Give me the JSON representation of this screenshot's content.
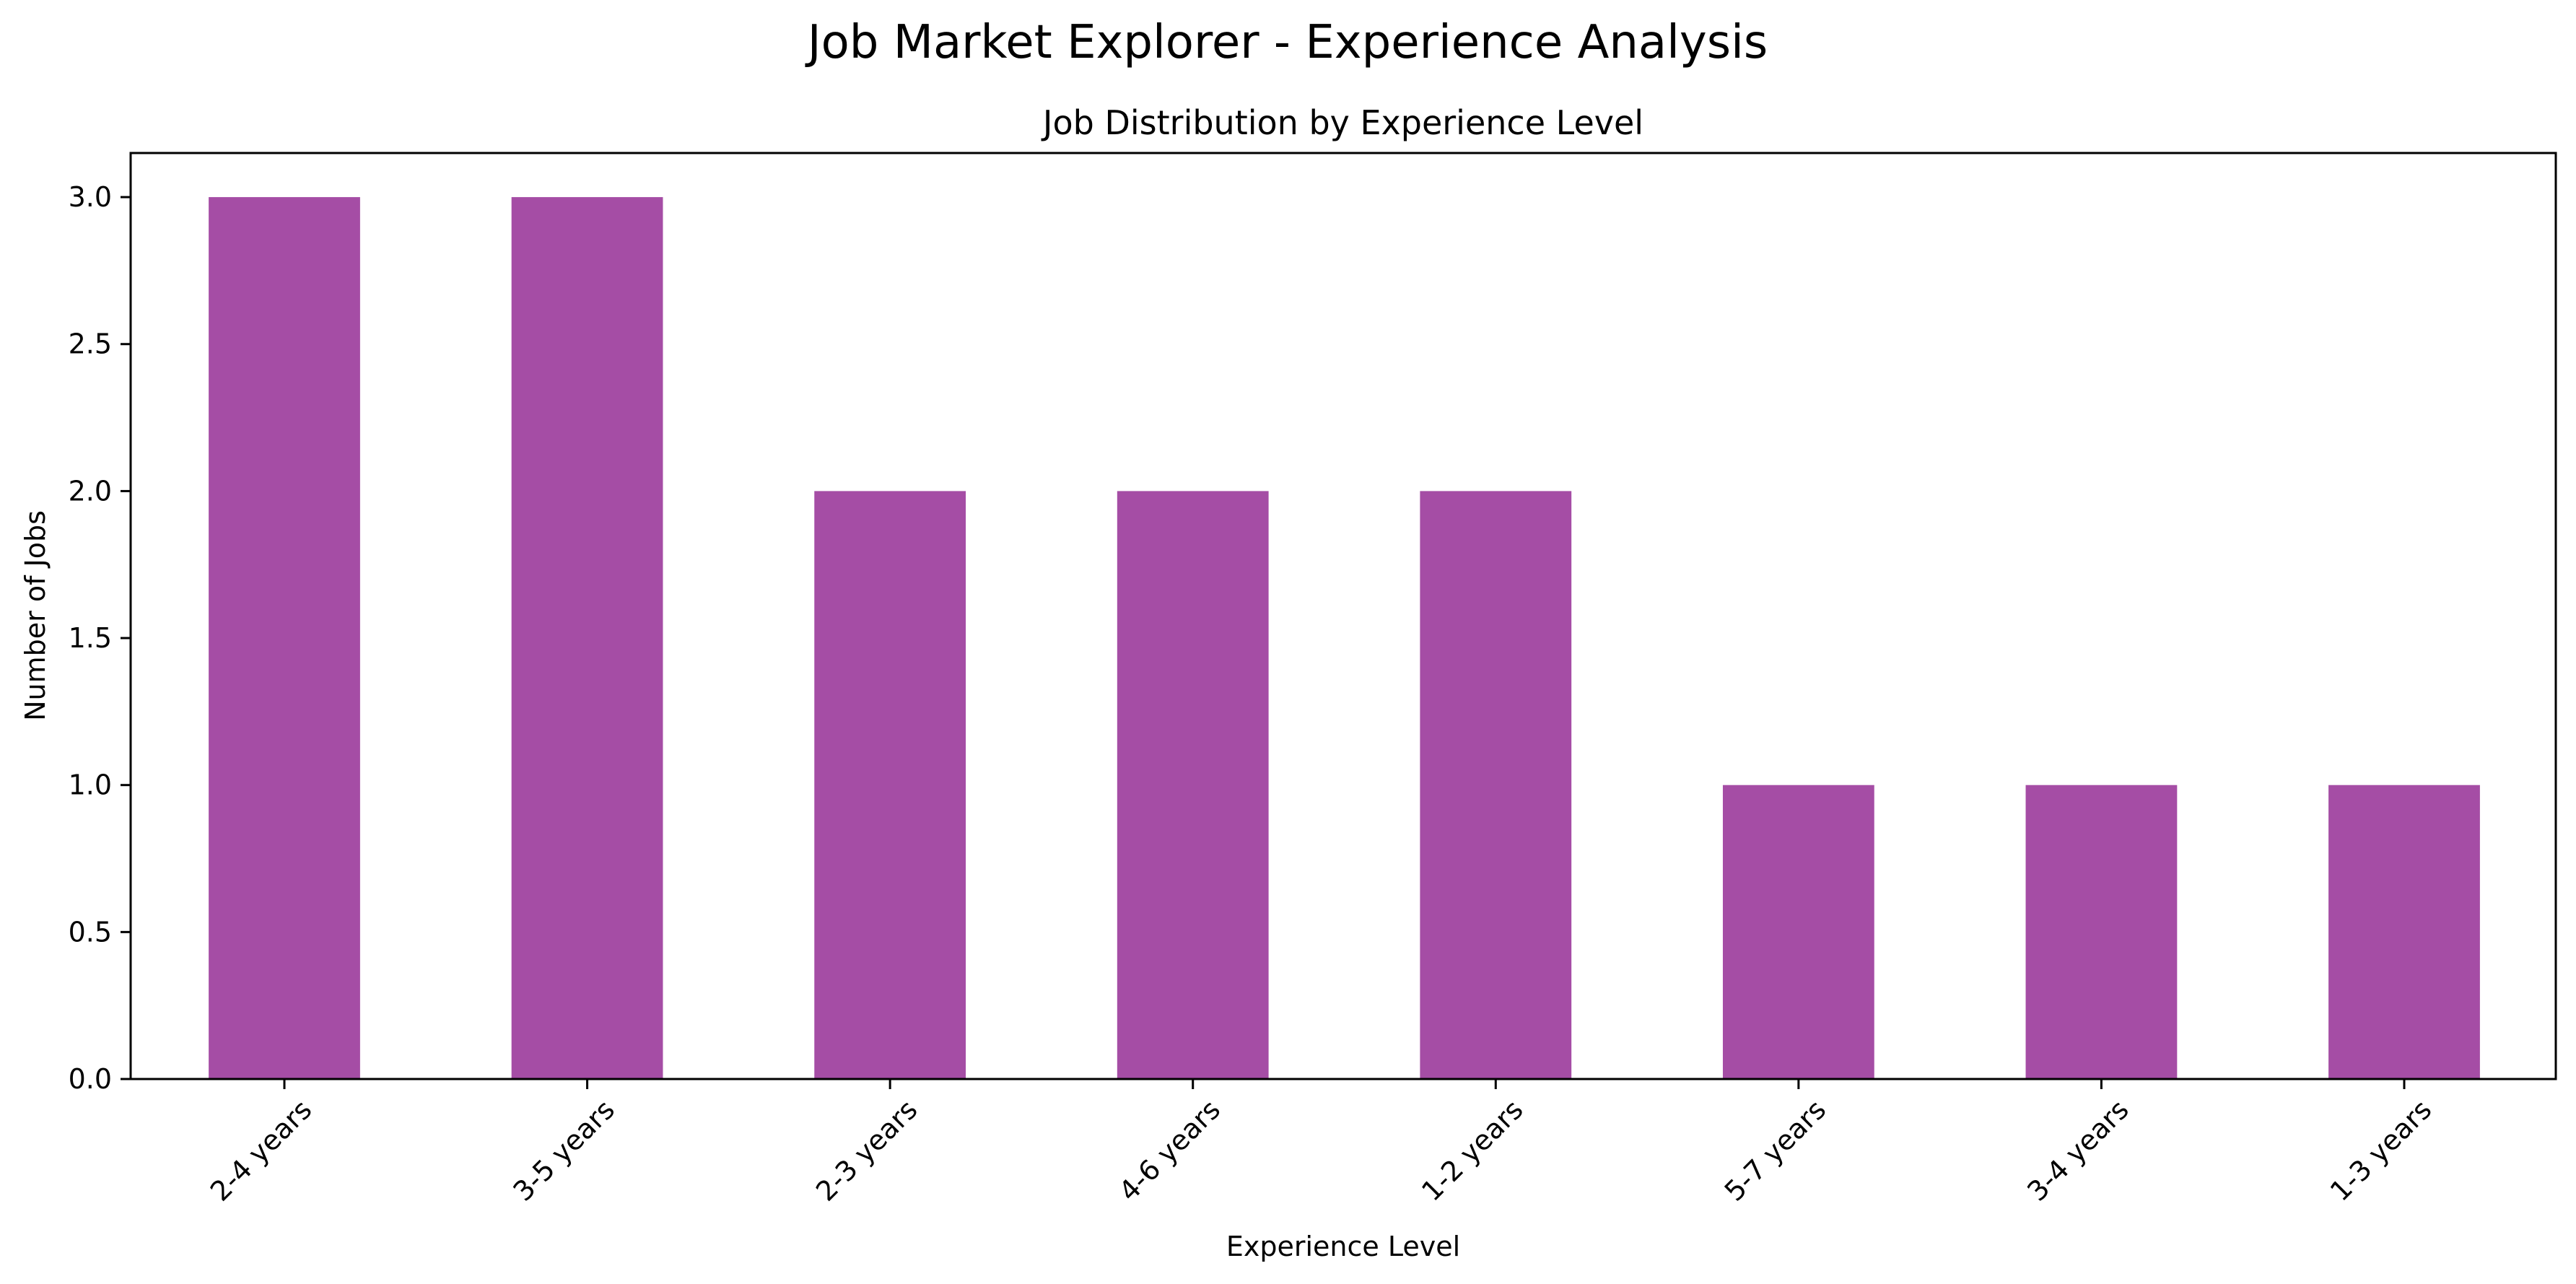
{
  "figure": {
    "suptitle": "Job Market Explorer - Experience Analysis"
  },
  "chart_data": {
    "type": "bar",
    "title": "Job Distribution by Experience Level",
    "xlabel": "Experience Level",
    "ylabel": "Number of Jobs",
    "categories": [
      "2-4 years",
      "3-5 years",
      "2-3 years",
      "4-6 years",
      "1-2 years",
      "5-7 years",
      "3-4 years",
      "1-3 years"
    ],
    "values": [
      3,
      3,
      2,
      2,
      2,
      1,
      1,
      1
    ],
    "ylim": [
      0,
      3.15
    ],
    "yticks": [
      "0.0",
      "0.5",
      "1.0",
      "1.5",
      "2.0",
      "2.5",
      "3.0"
    ],
    "bar_color": "#a54da5",
    "grid": false,
    "legend": false
  }
}
